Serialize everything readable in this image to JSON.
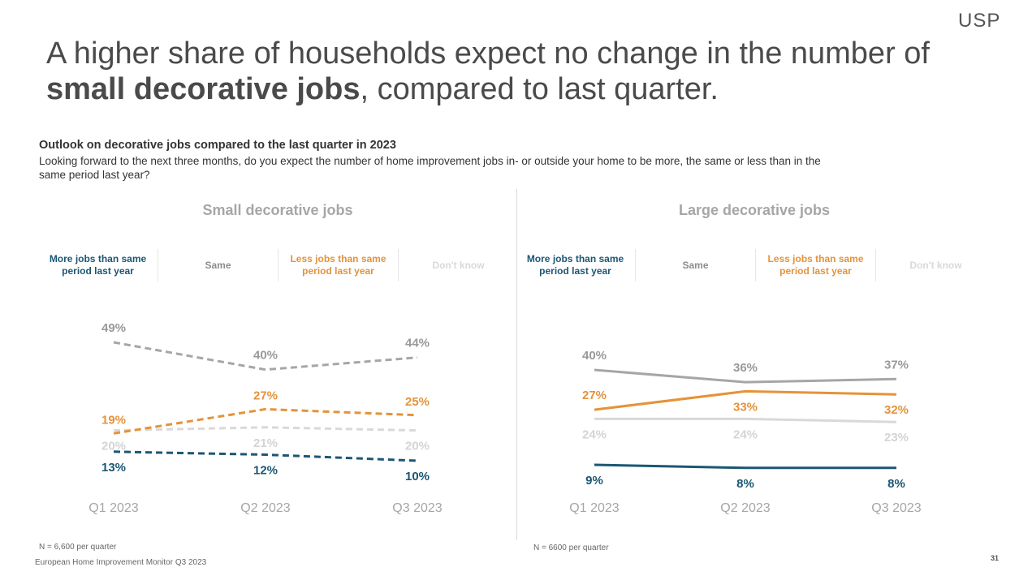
{
  "logo": "USP",
  "headline": {
    "part1": "A higher share of households expect no change in the number of ",
    "bold": "small decorative jobs",
    "part2": ", compared to last quarter."
  },
  "subtitle": "Outlook on decorative jobs compared to the last quarter in 2023",
  "question": "Looking forward to the next three months, do you expect the number of home improvement jobs in- or outside your home to be more, the same or less than in the same period last year?",
  "legend": [
    {
      "label": "More jobs than same period last year",
      "color": "#1b5774"
    },
    {
      "label": "Same",
      "color": "#8c8c8c"
    },
    {
      "label": "Less jobs than same period last year",
      "color": "#e4933a"
    },
    {
      "label": "Don't know",
      "color": "#d9d9d9"
    }
  ],
  "colors": {
    "more": "#1b5774",
    "same": "#a6a6a6",
    "less": "#e4933a",
    "dontknow": "#d9d9d9"
  },
  "chart_data": [
    {
      "type": "line",
      "title": "Small decorative jobs",
      "line_style": "dashed",
      "categories": [
        "Q1 2023",
        "Q2 2023",
        "Q3 2023"
      ],
      "series": [
        {
          "name": "More jobs than same period last year",
          "key": "more",
          "values": [
            13,
            12,
            10
          ],
          "labels": [
            "13%",
            "12%",
            "10%"
          ]
        },
        {
          "name": "Same",
          "key": "same",
          "values": [
            49,
            40,
            44
          ],
          "labels": [
            "49%",
            "40%",
            "44%"
          ]
        },
        {
          "name": "Less jobs than same period last year",
          "key": "less",
          "values": [
            19,
            27,
            25
          ],
          "labels": [
            "19%",
            "27%",
            "25%"
          ]
        },
        {
          "name": "Don't know",
          "key": "dontknow",
          "values": [
            20,
            21,
            20
          ],
          "labels": [
            "20%",
            "21%",
            "20%"
          ]
        }
      ],
      "footnote": "N = 6,600 per quarter"
    },
    {
      "type": "line",
      "title": "Large decorative jobs",
      "line_style": "solid",
      "categories": [
        "Q1 2023",
        "Q2 2023",
        "Q3 2023"
      ],
      "series": [
        {
          "name": "More jobs than same period last year",
          "key": "more",
          "values": [
            9,
            8,
            8
          ],
          "labels": [
            "9%",
            "8%",
            "8%"
          ]
        },
        {
          "name": "Same",
          "key": "same",
          "values": [
            40,
            36,
            37
          ],
          "labels": [
            "40%",
            "36%",
            "37%"
          ]
        },
        {
          "name": "Less jobs than same period last year",
          "key": "less",
          "values": [
            27,
            33,
            32
          ],
          "labels": [
            "27%",
            "33%",
            "32%"
          ]
        },
        {
          "name": "Don't know",
          "key": "dontknow",
          "values": [
            24,
            24,
            23
          ],
          "labels": [
            "24%",
            "24%",
            "23%"
          ]
        }
      ],
      "footnote": "N = 6600 per quarter"
    }
  ],
  "source": "European Home Improvement Monitor Q3 2023",
  "page_number": "31"
}
